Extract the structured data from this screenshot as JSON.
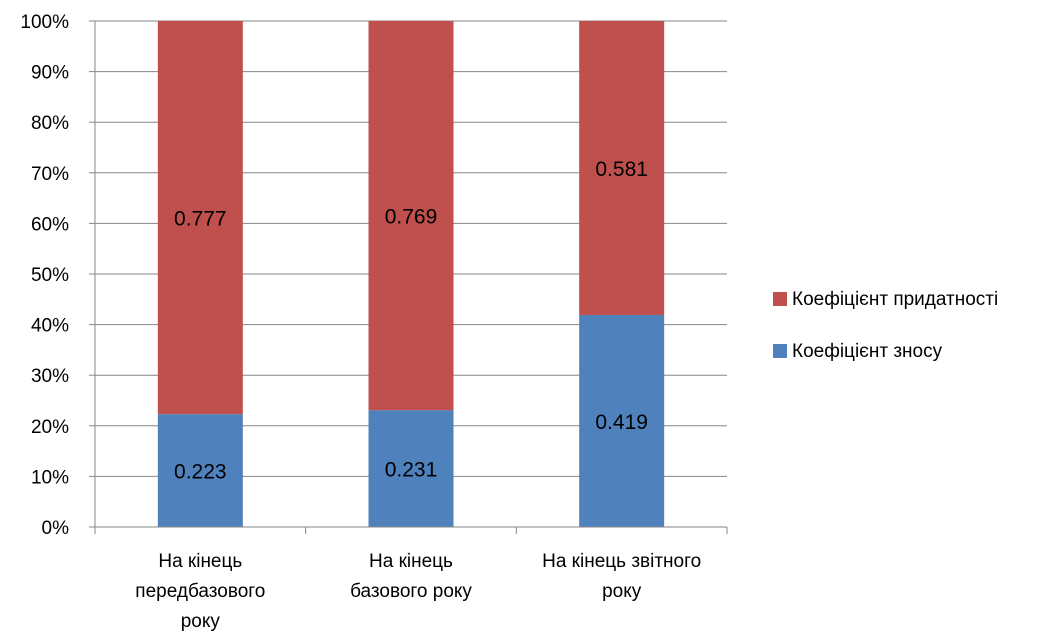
{
  "chart_data": {
    "type": "bar",
    "stacked": "percent",
    "categories": [
      [
        "На кінець",
        "передбазового",
        "року"
      ],
      [
        "На кінець",
        "базового року"
      ],
      [
        "На кінець звітного",
        "року"
      ]
    ],
    "series": [
      {
        "name": "Коефіцієнт зносу",
        "values": [
          0.223,
          0.231,
          0.419
        ],
        "labels": [
          "0.223",
          "0.231",
          "0.419"
        ],
        "color": "#4f81bd"
      },
      {
        "name": "Коефіцієнт придатності",
        "values": [
          0.777,
          0.769,
          0.581
        ],
        "labels": [
          "0.777",
          "0.769",
          "0.581"
        ],
        "color": "#c0504d"
      }
    ],
    "yticks": [
      "0%",
      "10%",
      "20%",
      "30%",
      "40%",
      "50%",
      "60%",
      "70%",
      "80%",
      "90%",
      "100%"
    ],
    "ylim": [
      0,
      1
    ],
    "grid": true,
    "legend": "right",
    "legend_order": [
      "Коефіцієнт придатності",
      "Коефіцієнт зносу"
    ],
    "title": "",
    "xlabel": "",
    "ylabel": ""
  }
}
